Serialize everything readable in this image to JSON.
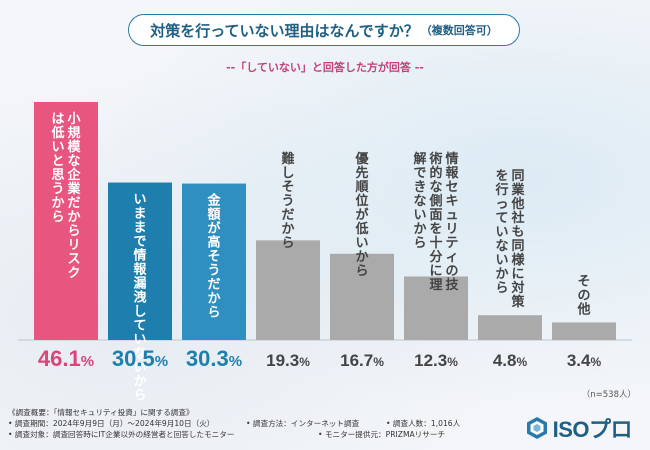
{
  "title": {
    "main": "対策を行っていない理由はなんですか？",
    "note": "（複数回答可）"
  },
  "subtitle": "--「していない」と回答した方が回答 --",
  "n_note": "（n=538人）",
  "footer": {
    "line1": "《調査概要：「情報セキュリティ投資」に関する調査》",
    "period": "• 調査期間：2024年9月9日（月）～2024年9月10日（火）",
    "method": "• 調査方法：インターネット調査",
    "count": "• 調査人数：1,016人",
    "target": "• 調査対象：調査回答時にIT企業以外の経営者と回答したモニター",
    "provider": "• モニター提供元：PRIZMAリサーチ"
  },
  "logo": {
    "text": "ISOプロ"
  },
  "colors": {
    "pink": "#e8557f",
    "blue": "#1e7fae",
    "lightblue": "#2f8fc0",
    "gray": "#aaaaaa",
    "pink_text": "#d8467a",
    "blue_text": "#1e7fae",
    "gray_text": "#444444"
  },
  "chart_data": {
    "type": "bar",
    "unit": "%",
    "ylim": [
      0,
      50
    ],
    "categories": [
      "小規模な企業だからリスクは低いと思うから",
      "いままで情報漏洩していないから",
      "金額が高そうだから",
      "難しそうだから",
      "優先順位が低いから",
      "情報セキュリティの技術的な側面を十分に理解できないから",
      "同業他社も同様に対策を行っていないから",
      "その他"
    ],
    "values": [
      46.1,
      30.5,
      30.3,
      19.3,
      16.7,
      12.3,
      4.8,
      3.4
    ],
    "labels": [
      "46.1",
      "30.5",
      "30.3",
      "19.3",
      "16.7",
      "12.3",
      "4.8",
      "3.4"
    ],
    "bar_color_keys": [
      "pink",
      "blue",
      "lightblue",
      "gray",
      "gray",
      "gray",
      "gray",
      "gray"
    ]
  }
}
